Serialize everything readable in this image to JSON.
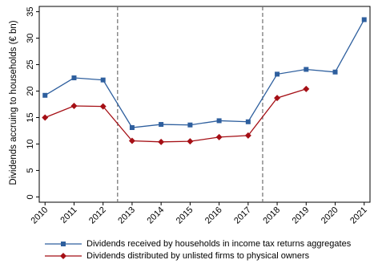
{
  "chart_data": {
    "type": "line",
    "ylabel": "Dividends accruing to households (€ bn)",
    "xlabel": "",
    "x": [
      2010,
      2011,
      2012,
      2013,
      2014,
      2015,
      2016,
      2017,
      2018,
      2019,
      2020,
      2021
    ],
    "x_tick_labels": [
      "2010",
      "2011",
      "2012",
      "2013",
      "2014",
      "2015",
      "2016",
      "2017",
      "2018",
      "2019",
      "2020",
      "2021"
    ],
    "y_ticks": [
      0,
      5,
      10,
      15,
      20,
      25,
      30,
      35
    ],
    "ylim": [
      -1,
      36
    ],
    "xlim": [
      2009.8,
      2021.2
    ],
    "reference_lines_x": [
      2012.5,
      2017.5
    ],
    "grid": false,
    "legend_position": "bottom",
    "series": [
      {
        "name": "Dividends received by households in income tax returns aggregates",
        "color": "#2e5f9e",
        "marker": "square",
        "values": [
          19.2,
          22.5,
          22.1,
          13.1,
          13.7,
          13.6,
          14.4,
          14.2,
          23.2,
          24.1,
          23.6,
          33.5
        ]
      },
      {
        "name": "Dividends distributed by unlisted firms to physical owners",
        "color": "#a50f15",
        "marker": "diamond",
        "values": [
          15.0,
          17.2,
          17.1,
          10.6,
          10.4,
          10.5,
          11.3,
          11.6,
          18.7,
          20.4,
          null,
          null
        ]
      }
    ]
  }
}
